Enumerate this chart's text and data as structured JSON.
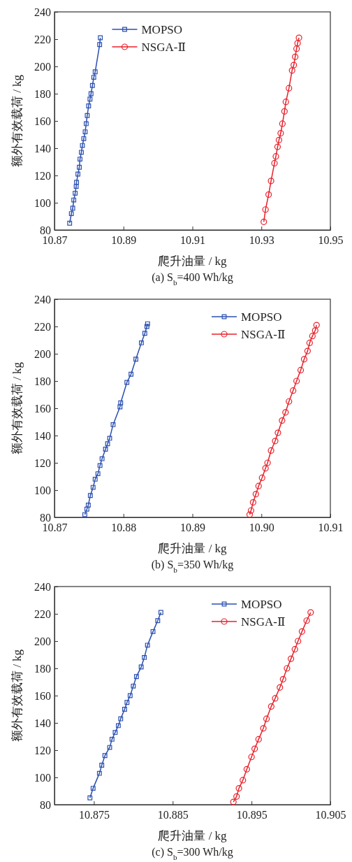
{
  "chart_data": [
    {
      "type": "line",
      "title": "(a) S$_{b}$=400 Wh/kg",
      "xlabel": "爬升油量 / kg",
      "ylabel": "额外有效载荷 / kg",
      "xlim": [
        10.87,
        10.95
      ],
      "xticks": [
        10.87,
        10.89,
        10.91,
        10.93,
        10.95
      ],
      "ylim": [
        80,
        240
      ],
      "yticks": [
        80,
        100,
        120,
        140,
        160,
        180,
        200,
        220,
        240
      ],
      "legend": "top",
      "grid": false,
      "series": [
        {
          "name": "MOPSO",
          "color": "#2a4fb0",
          "marker": "square",
          "x": [
            10.8744,
            10.8749,
            10.8753,
            10.8756,
            10.876,
            10.8763,
            10.8764,
            10.8768,
            10.8772,
            10.8774,
            10.8778,
            10.8781,
            10.8785,
            10.8789,
            10.8792,
            10.8795,
            10.8799,
            10.8803,
            10.8806,
            10.881,
            10.8814,
            10.8818,
            10.8831,
            10.8833
          ],
          "values": [
            85,
            92,
            96,
            102,
            107,
            112,
            115,
            121,
            126,
            132,
            137,
            142,
            147,
            152,
            158,
            164,
            171,
            176,
            180,
            186,
            192,
            196,
            216,
            221
          ]
        },
        {
          "name": "NSGA-Ⅱ",
          "color": "#e8202a",
          "marker": "circle",
          "x": [
            10.9307,
            10.9312,
            10.9321,
            10.9328,
            10.9338,
            10.9342,
            10.9347,
            10.9351,
            10.9356,
            10.9361,
            10.9367,
            10.9371,
            10.938,
            10.9389,
            10.9394,
            10.9398,
            10.9402,
            10.9405,
            10.9409
          ],
          "values": [
            86,
            95,
            106,
            116,
            129,
            134,
            141,
            146,
            151,
            158,
            167,
            174,
            184,
            197,
            201,
            207,
            213,
            217,
            221
          ]
        }
      ]
    },
    {
      "type": "line",
      "title": "(b) S$_{b}$=350 Wh/kg",
      "xlabel": "爬升油量 / kg",
      "ylabel": "额外有效载荷 / kg",
      "xlim": [
        10.87,
        10.91
      ],
      "xticks": [
        10.87,
        10.88,
        10.89,
        {
          "value": 10.9,
          "label": "10.90"
        },
        10.91
      ],
      "ylim": [
        80,
        240
      ],
      "yticks": [
        80,
        100,
        120,
        140,
        160,
        180,
        200,
        220,
        240
      ],
      "legend": "top right",
      "grid": false,
      "series": [
        {
          "name": "MOPSO",
          "color": "#2a4fb0",
          "marker": "square",
          "x": [
            10.8744,
            10.8747,
            10.8749,
            10.8752,
            10.8756,
            10.8759,
            10.8763,
            10.8766,
            10.8769,
            10.8774,
            10.8777,
            10.878,
            10.8785,
            10.8795,
            10.8796,
            10.8805,
            10.8811,
            10.8818,
            10.8826,
            10.8831,
            10.8834,
            10.8835
          ],
          "values": [
            82,
            86,
            89,
            96,
            102,
            108,
            112,
            118,
            123,
            130,
            134,
            138,
            148,
            161,
            164,
            179,
            185,
            196,
            208,
            215,
            220,
            222
          ]
        },
        {
          "name": "NSGA-Ⅱ",
          "color": "#e8202a",
          "marker": "circle",
          "x": [
            10.8983,
            10.8985,
            10.8988,
            10.8992,
            10.8996,
            10.9001,
            10.9006,
            10.9009,
            10.9014,
            10.902,
            10.9024,
            10.903,
            10.9035,
            10.904,
            10.9046,
            10.9051,
            10.9057,
            10.9062,
            10.9067,
            10.907,
            10.9074,
            10.9078,
            10.908
          ],
          "values": [
            82,
            85,
            91,
            97,
            103,
            109,
            116,
            120,
            129,
            136,
            142,
            151,
            157,
            165,
            173,
            180,
            188,
            196,
            202,
            208,
            213,
            217,
            221
          ]
        }
      ]
    },
    {
      "type": "line",
      "title": "(c) S$_{b}$=300 Wh/kg",
      "xlabel": "爬升油量 / kg",
      "ylabel": "额外有效载荷 / kg",
      "xlim": [
        10.87,
        10.905
      ],
      "xticks": [
        10.875,
        10.885,
        10.895,
        10.905
      ],
      "ylim": [
        80,
        240
      ],
      "yticks": [
        80,
        100,
        120,
        140,
        160,
        180,
        200,
        220,
        240
      ],
      "legend": "top right",
      "grid": false,
      "series": [
        {
          "name": "MOPSO",
          "color": "#2a4fb0",
          "marker": "square",
          "x": [
            10.8745,
            10.8749,
            10.8757,
            10.876,
            10.8764,
            10.877,
            10.8773,
            10.8777,
            10.8781,
            10.8784,
            10.8789,
            10.8792,
            10.8796,
            10.88,
            10.8804,
            10.881,
            10.8814,
            10.8818,
            10.8825,
            10.8831,
            10.8835
          ],
          "values": [
            85,
            92,
            103,
            109,
            116,
            122,
            128,
            133,
            138,
            143,
            150,
            155,
            160,
            167,
            174,
            181,
            188,
            197,
            207,
            215,
            221
          ]
        },
        {
          "name": "NSGA-Ⅱ",
          "color": "#e8202a",
          "marker": "circle",
          "x": [
            10.8927,
            10.8931,
            10.8934,
            10.8939,
            10.8944,
            10.895,
            10.8954,
            10.8959,
            10.8965,
            10.8969,
            10.8975,
            10.898,
            10.8986,
            10.899,
            10.8995,
            10.9,
            10.9005,
            10.9009,
            10.9014,
            10.902,
            10.9025
          ],
          "values": [
            82,
            86,
            92,
            98,
            106,
            115,
            121,
            128,
            136,
            143,
            152,
            158,
            166,
            172,
            180,
            187,
            194,
            200,
            207,
            215,
            221
          ]
        }
      ]
    }
  ]
}
